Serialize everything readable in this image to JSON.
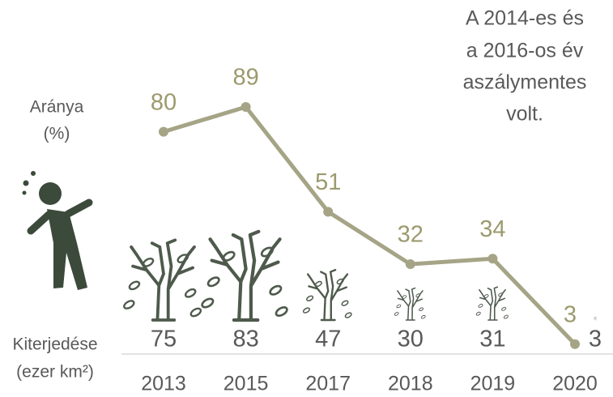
{
  "chart_data": {
    "type": "line",
    "categories": [
      "2013",
      "2015",
      "2017",
      "2018",
      "2019",
      "2020"
    ],
    "values": [
      80,
      89,
      51,
      32,
      34,
      3
    ],
    "extent_values": [
      75,
      83,
      47,
      30,
      31,
      3
    ],
    "y_label": [
      "Aránya",
      "(%)"
    ],
    "extent_label": [
      "Kiterjedése",
      "(ezer km²)"
    ],
    "annotation": [
      "A 2014-es és",
      "a 2016-os év",
      "aszálymentes",
      "volt."
    ],
    "color": "#a5a486",
    "label_color": "#9c9a6e",
    "tree_color": "#4e5a4c"
  }
}
